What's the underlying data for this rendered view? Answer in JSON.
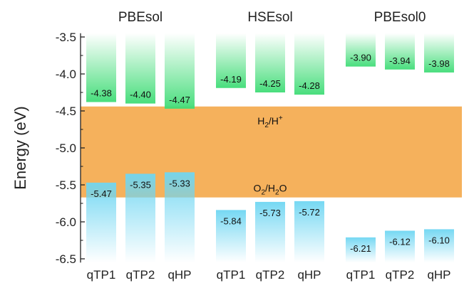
{
  "chart_data": {
    "type": "bar",
    "ylabel": "Energy (eV)",
    "ylim": [
      -6.55,
      -3.45
    ],
    "yticks": [
      "-3.5",
      "-4.0",
      "-4.5",
      "-5.0",
      "-5.5",
      "-6.0",
      "-6.5"
    ],
    "ytick_values": [
      -3.5,
      -4.0,
      -4.5,
      -5.0,
      -5.5,
      -6.0,
      -6.5
    ],
    "groups": [
      {
        "method": "PBEsol",
        "categories": [
          "qTP1",
          "qTP2",
          "qHP"
        ],
        "cbm": [
          -4.38,
          -4.4,
          -4.47
        ],
        "cbm_labels": [
          "-4.38",
          "-4.40",
          "-4.47"
        ],
        "vbm": [
          -5.47,
          -5.35,
          -5.33
        ],
        "vbm_labels": [
          "-5.47",
          "-5.35",
          "-5.33"
        ]
      },
      {
        "method": "HSEsol",
        "categories": [
          "qTP1",
          "qTP2",
          "qHP"
        ],
        "cbm": [
          -4.19,
          -4.25,
          -4.28
        ],
        "cbm_labels": [
          "-4.19",
          "-4.25",
          "-4.28"
        ],
        "vbm": [
          -5.84,
          -5.73,
          -5.72
        ],
        "vbm_labels": [
          "-5.84",
          "-5.73",
          "-5.72"
        ]
      },
      {
        "method": "PBEsol0",
        "categories": [
          "qTP1",
          "qTP2",
          "qHP"
        ],
        "cbm": [
          -3.9,
          -3.94,
          -3.98
        ],
        "cbm_labels": [
          "-3.90",
          "-3.94",
          "-3.98"
        ],
        "vbm": [
          -6.21,
          -6.12,
          -6.1
        ],
        "vbm_labels": [
          "-6.21",
          "-6.12",
          "-6.10"
        ]
      }
    ],
    "redox_band": {
      "top": -4.44,
      "bottom": -5.67,
      "top_label": {
        "base": "H",
        "sub": "2",
        "mid": "/H",
        "sup": "+"
      },
      "bottom_label": {
        "base": "O",
        "sub1": "2",
        "mid": "/H",
        "sub2": "2",
        "end": "O"
      }
    },
    "colors": {
      "cbm": "#3fdc76",
      "vbm": "#6fd6f2",
      "band": "#f5b15c",
      "axis": "#222222"
    }
  }
}
